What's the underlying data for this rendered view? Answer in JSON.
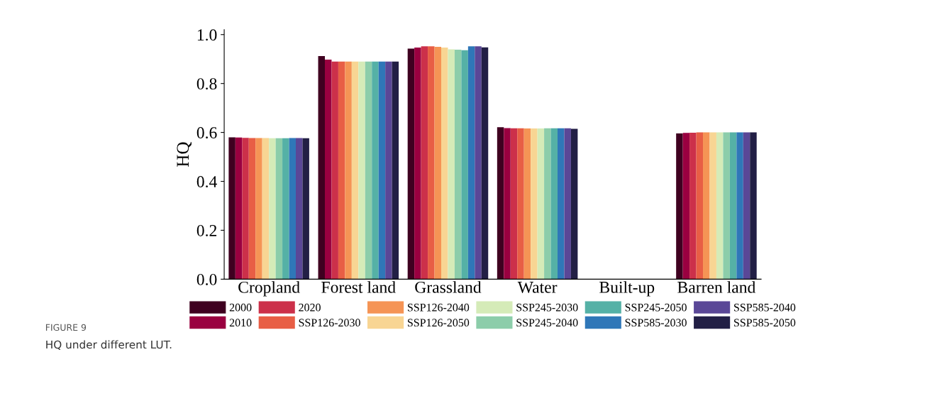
{
  "chart_data": {
    "type": "bar",
    "ylabel": "HQ",
    "categories": [
      "Cropland",
      "Forest land",
      "Grassland",
      "Water",
      "Built-up",
      "Barren land"
    ],
    "series": [
      {
        "name": "2000",
        "color": "#3f0020",
        "values": [
          0.58,
          0.912,
          0.943,
          0.621,
          0,
          0.596
        ]
      },
      {
        "name": "2010",
        "color": "#9a0040",
        "values": [
          0.579,
          0.898,
          0.947,
          0.618,
          0,
          0.598
        ]
      },
      {
        "name": "2020",
        "color": "#cc304a",
        "values": [
          0.578,
          0.89,
          0.952,
          0.617,
          0,
          0.599
        ]
      },
      {
        "name": "SSP126-2030",
        "color": "#e85e45",
        "values": [
          0.577,
          0.89,
          0.952,
          0.617,
          0,
          0.6
        ]
      },
      {
        "name": "SSP126-2040",
        "color": "#f59455",
        "values": [
          0.577,
          0.89,
          0.95,
          0.616,
          0,
          0.6
        ]
      },
      {
        "name": "SSP126-2050",
        "color": "#f8d593",
        "values": [
          0.577,
          0.89,
          0.947,
          0.616,
          0,
          0.6
        ]
      },
      {
        "name": "SSP245-2030",
        "color": "#d5ebb8",
        "values": [
          0.576,
          0.89,
          0.94,
          0.616,
          0,
          0.6
        ]
      },
      {
        "name": "SSP245-2040",
        "color": "#8ccdaa",
        "values": [
          0.576,
          0.89,
          0.938,
          0.617,
          0,
          0.6
        ]
      },
      {
        "name": "SSP245-2050",
        "color": "#55b1a6",
        "values": [
          0.576,
          0.89,
          0.936,
          0.617,
          0,
          0.6
        ]
      },
      {
        "name": "SSP585-2030",
        "color": "#2f77b8",
        "values": [
          0.577,
          0.89,
          0.952,
          0.617,
          0,
          0.6
        ]
      },
      {
        "name": "SSP585-2040",
        "color": "#5a4797",
        "values": [
          0.577,
          0.89,
          0.952,
          0.617,
          0,
          0.6
        ]
      },
      {
        "name": "SSP585-2050",
        "color": "#221f45",
        "values": [
          0.576,
          0.89,
          0.948,
          0.615,
          0,
          0.6
        ]
      }
    ],
    "ylim": [
      0,
      1.02
    ],
    "yticks": [
      {
        "value": 0,
        "label": "0.0"
      },
      {
        "value": 0.2,
        "label": "0.2"
      },
      {
        "value": 0.4,
        "label": "0.4"
      },
      {
        "value": 0.6,
        "label": "0.6"
      },
      {
        "value": 0.8,
        "label": "0.8"
      },
      {
        "value": 1.0,
        "label": "1.0"
      }
    ],
    "grid": false,
    "legend": "bottom",
    "annotations": [
      "FIGURE 9",
      "HQ under different LUT."
    ]
  }
}
